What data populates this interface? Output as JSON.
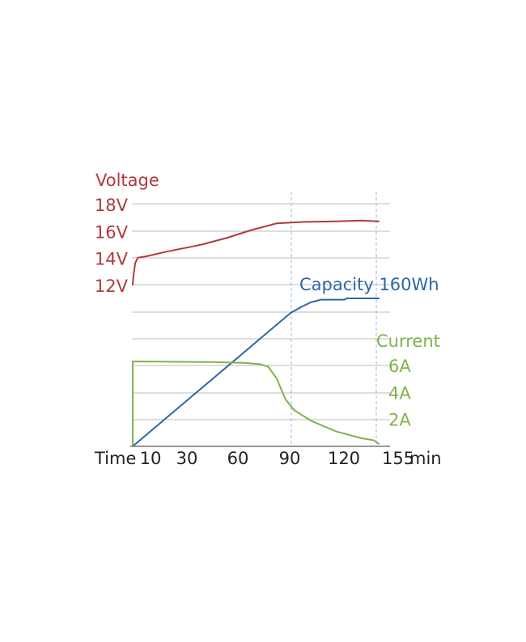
{
  "chart_data": {
    "type": "line",
    "x_axis": {
      "label": "Time",
      "unit": "min",
      "ticks": [
        "10",
        "30",
        "60",
        "90",
        "120",
        "155"
      ],
      "range": [
        0,
        145
      ]
    },
    "voltage_axis": {
      "label": "Voltage",
      "ticks": [
        "12V",
        "14V",
        "16V",
        "18V"
      ],
      "values": [
        12,
        14,
        16,
        18
      ]
    },
    "current_axis": {
      "label": "Current",
      "ticks": [
        "2A",
        "4A",
        "6A"
      ],
      "values": [
        2,
        4,
        6
      ]
    },
    "capacity_label": "Capacity 160Wh",
    "series": [
      {
        "name": "Voltage",
        "color": "#b03a3a",
        "points": [
          [
            0,
            12.0
          ],
          [
            0.5,
            12.7
          ],
          [
            1.5,
            13.6
          ],
          [
            3,
            14.0
          ],
          [
            8,
            14.1
          ],
          [
            20,
            14.45
          ],
          [
            40,
            14.95
          ],
          [
            55,
            15.45
          ],
          [
            70,
            16.05
          ],
          [
            85,
            16.55
          ],
          [
            100,
            16.65
          ],
          [
            120,
            16.7
          ],
          [
            135,
            16.75
          ],
          [
            145,
            16.7
          ]
        ]
      },
      {
        "name": "Capacity",
        "color": "#2f66a8",
        "points": [
          [
            0,
            0
          ],
          [
            93,
            100
          ],
          [
            100,
            105
          ],
          [
            105,
            108
          ],
          [
            111,
            110
          ],
          [
            125,
            110
          ],
          [
            126,
            111
          ],
          [
            145,
            111
          ]
        ]
      },
      {
        "name": "Current",
        "color": "#7fb24a",
        "points": [
          [
            0,
            0
          ],
          [
            0,
            6.3
          ],
          [
            47,
            6.25
          ],
          [
            65,
            6.2
          ],
          [
            75,
            6.1
          ],
          [
            80,
            5.9
          ],
          [
            85,
            5.0
          ],
          [
            90,
            3.5
          ],
          [
            95,
            2.7
          ],
          [
            105,
            1.9
          ],
          [
            120,
            1.1
          ],
          [
            135,
            0.6
          ],
          [
            142,
            0.45
          ],
          [
            145,
            0.2
          ]
        ]
      }
    ]
  }
}
